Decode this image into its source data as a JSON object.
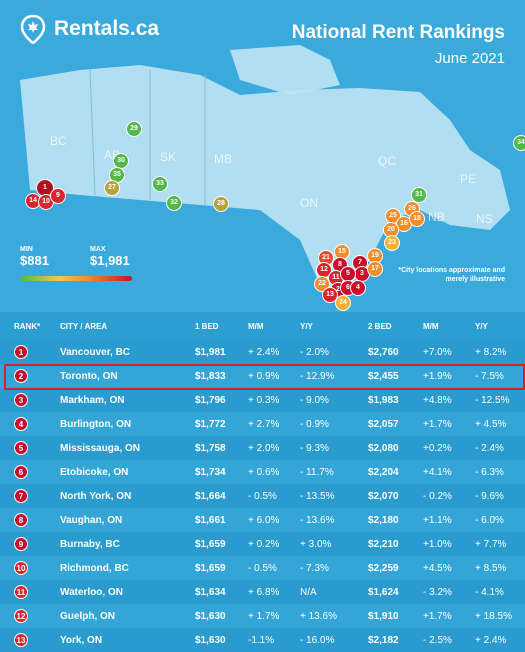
{
  "brand": {
    "name": "Rentals.ca"
  },
  "header": {
    "title": "National Rent Rankings",
    "subtitle": "June 2021"
  },
  "regions": [
    "BC",
    "AB",
    "SK",
    "MB",
    "ON",
    "QC",
    "PE",
    "NB",
    "NS"
  ],
  "legend": {
    "min_label": "MIN",
    "min_value": "$881",
    "max_label": "MAX",
    "max_value": "$1,981"
  },
  "note": "*City locations approximate and merely illustrative",
  "table": {
    "headers": [
      "RANK*",
      "CITY / AREA",
      "1 BED",
      "M/M",
      "Y/Y",
      "2 BED",
      "M/M",
      "Y/Y"
    ],
    "rows": [
      {
        "rank": "1",
        "city": "Vancouver, BC",
        "bed1": "$1,981",
        "mm1": "+ 2.4%",
        "yy1": "- 2.0%",
        "bed2": "$2,760",
        "mm2": "+7.0%",
        "yy2": "+ 8.2%",
        "color": "#c8102e"
      },
      {
        "rank": "2",
        "city": "Toronto, ON",
        "bed1": "$1,833",
        "mm1": "+ 0.9%",
        "yy1": "- 12.9%",
        "bed2": "$2,455",
        "mm2": "+1.9%",
        "yy2": "- 7.5%",
        "color": "#c8102e"
      },
      {
        "rank": "3",
        "city": "Markham, ON",
        "bed1": "$1,796",
        "mm1": "+ 0.3%",
        "yy1": "- 9.0%",
        "bed2": "$1,983",
        "mm2": "+4.8%",
        "yy2": "- 12.5%",
        "color": "#c8102e"
      },
      {
        "rank": "4",
        "city": "Burlington, ON",
        "bed1": "$1,772",
        "mm1": "+ 2.7%",
        "yy1": "- 0.9%",
        "bed2": "$2,057",
        "mm2": "+1.7%",
        "yy2": "+ 4.5%",
        "color": "#c8102e"
      },
      {
        "rank": "5",
        "city": "Mississauga, ON",
        "bed1": "$1,758",
        "mm1": "+ 2.0%",
        "yy1": "- 9.3%",
        "bed2": "$2,080",
        "mm2": "+0.2%",
        "yy2": "- 2.4%",
        "color": "#c8102e"
      },
      {
        "rank": "6",
        "city": "Etobicoke, ON",
        "bed1": "$1,734",
        "mm1": "+ 0.6%",
        "yy1": "- 11.7%",
        "bed2": "$2,204",
        "mm2": "+4.1%",
        "yy2": "- 6.3%",
        "color": "#c8102e"
      },
      {
        "rank": "7",
        "city": "North York, ON",
        "bed1": "$1,664",
        "mm1": "- 0.5%",
        "yy1": "- 13.5%",
        "bed2": "$2,070",
        "mm2": "- 0.2%",
        "yy2": "- 9.6%",
        "color": "#c8102e"
      },
      {
        "rank": "8",
        "city": "Vaughan, ON",
        "bed1": "$1,661",
        "mm1": "+ 6.0%",
        "yy1": "- 13.6%",
        "bed2": "$2,180",
        "mm2": "+1.1%",
        "yy2": "- 6.0%",
        "color": "#c8102e"
      },
      {
        "rank": "9",
        "city": "Burnaby, BC",
        "bed1": "$1,659",
        "mm1": "+ 0.2%",
        "yy1": "+ 3.0%",
        "bed2": "$2,210",
        "mm2": "+1.0%",
        "yy2": "+ 7.7%",
        "color": "#c8102e"
      },
      {
        "rank": "10",
        "city": "Richmond, BC",
        "bed1": "$1,659",
        "mm1": "- 0.5%",
        "yy1": "- 7.3%",
        "bed2": "$2,259",
        "mm2": "+4.5%",
        "yy2": "+ 8.5%",
        "color": "#d92530"
      },
      {
        "rank": "11",
        "city": "Waterloo, ON",
        "bed1": "$1,634",
        "mm1": "+ 6.8%",
        "yy1": "N/A",
        "bed2": "$1,624",
        "mm2": "- 3.2%",
        "yy2": "- 4.1%",
        "color": "#d92530"
      },
      {
        "rank": "12",
        "city": "Guelph, ON",
        "bed1": "$1,630",
        "mm1": "+ 1.7%",
        "yy1": "+ 13.6%",
        "bed2": "$1,910",
        "mm2": "+1.7%",
        "yy2": "+ 18.5%",
        "color": "#d92530"
      },
      {
        "rank": "13",
        "city": "York, ON",
        "bed1": "$1,630",
        "mm1": "-1.1%",
        "yy1": "- 16.0%",
        "bed2": "$2,182",
        "mm2": "- 2.5%",
        "yy2": "+ 2.4%",
        "color": "#d92530"
      }
    ]
  },
  "markers": [
    {
      "label": "29",
      "color": "#52b848"
    },
    {
      "label": "30",
      "color": "#52b848"
    },
    {
      "label": "35",
      "color": "#52b848"
    },
    {
      "label": "27",
      "color": "#b7a33a"
    },
    {
      "label": "33",
      "color": "#52b848"
    },
    {
      "label": "32",
      "color": "#52b848"
    },
    {
      "label": "28",
      "color": "#b7a33a"
    },
    {
      "label": "1",
      "color": "#b01020"
    },
    {
      "label": "14",
      "color": "#d92530"
    },
    {
      "label": "10",
      "color": "#d92530"
    },
    {
      "label": "9",
      "color": "#d92530"
    },
    {
      "label": "31",
      "color": "#52b848"
    },
    {
      "label": "25",
      "color": "#f38d2a"
    },
    {
      "label": "26",
      "color": "#f38d2a"
    },
    {
      "label": "16",
      "color": "#f38d2a"
    },
    {
      "label": "18",
      "color": "#f38d2a"
    },
    {
      "label": "20",
      "color": "#f38d2a"
    },
    {
      "label": "23",
      "color": "#f2b134"
    },
    {
      "label": "34",
      "color": "#52b848"
    },
    {
      "label": "15",
      "color": "#f38d2a"
    },
    {
      "label": "19",
      "color": "#f38d2a"
    },
    {
      "label": "21",
      "color": "#e64a2e"
    },
    {
      "label": "12",
      "color": "#d92530"
    },
    {
      "label": "8",
      "color": "#c8102e"
    },
    {
      "label": "7",
      "color": "#c8102e"
    },
    {
      "label": "3",
      "color": "#c8102e"
    },
    {
      "label": "17",
      "color": "#f38d2a"
    },
    {
      "label": "11",
      "color": "#d92530"
    },
    {
      "label": "5",
      "color": "#c8102e"
    },
    {
      "label": "2",
      "color": "#c8102e"
    },
    {
      "label": "22",
      "color": "#f38d2a"
    },
    {
      "label": "6",
      "color": "#c8102e"
    },
    {
      "label": "4",
      "color": "#c8102e"
    },
    {
      "label": "13",
      "color": "#d92530"
    },
    {
      "label": "24",
      "color": "#f2b134"
    }
  ]
}
